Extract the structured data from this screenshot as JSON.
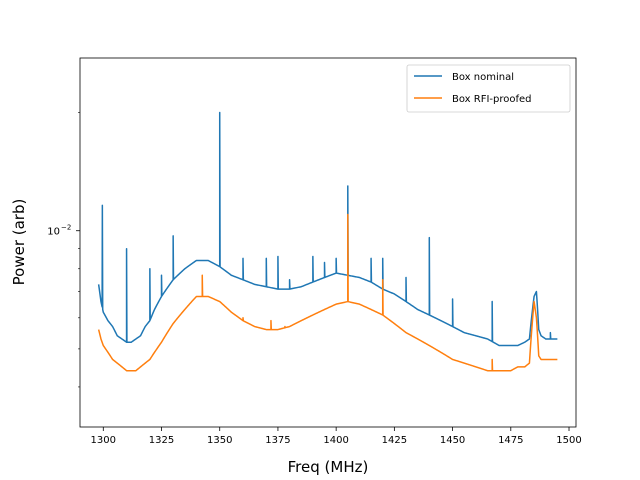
{
  "chart_data": {
    "type": "line",
    "xlabel": "Freq (MHz)",
    "ylabel": "Power (arb)",
    "xlim": [
      1290,
      1503
    ],
    "ylim_log": [
      -2.5,
      -1.56
    ],
    "yscale": "log",
    "x_ticks": [
      1300,
      1325,
      1350,
      1375,
      1400,
      1425,
      1450,
      1475,
      1500
    ],
    "x_tick_labels": [
      "1300",
      "1325",
      "1350",
      "1375",
      "1400",
      "1425",
      "1450",
      "1475",
      "1500"
    ],
    "y_major_ticks": [
      0.01
    ],
    "y_tick_base": "10",
    "y_tick_exp": "−2",
    "legend_position": "top-right",
    "grid": false,
    "series": [
      {
        "name": "Box nominal",
        "color": "#1f77b4",
        "baseline": [
          [
            1298,
            0.0073
          ],
          [
            1299,
            0.0066
          ],
          [
            1300,
            0.0062
          ],
          [
            1302,
            0.0059
          ],
          [
            1304,
            0.0057
          ],
          [
            1306,
            0.0054
          ],
          [
            1308,
            0.0053
          ],
          [
            1310,
            0.0052
          ],
          [
            1312,
            0.0052
          ],
          [
            1314,
            0.0053
          ],
          [
            1316,
            0.0054
          ],
          [
            1318,
            0.0057
          ],
          [
            1320,
            0.0059
          ],
          [
            1322,
            0.0063
          ],
          [
            1325,
            0.0068
          ],
          [
            1330,
            0.0075
          ],
          [
            1335,
            0.008
          ],
          [
            1340,
            0.0084
          ],
          [
            1345,
            0.0084
          ],
          [
            1350,
            0.0081
          ],
          [
            1355,
            0.0077
          ],
          [
            1360,
            0.0075
          ],
          [
            1365,
            0.0073
          ],
          [
            1370,
            0.0072
          ],
          [
            1375,
            0.0071
          ],
          [
            1380,
            0.0071
          ],
          [
            1385,
            0.0072
          ],
          [
            1390,
            0.0074
          ],
          [
            1395,
            0.0076
          ],
          [
            1400,
            0.0078
          ],
          [
            1405,
            0.0077
          ],
          [
            1410,
            0.0076
          ],
          [
            1415,
            0.0074
          ],
          [
            1420,
            0.0071
          ],
          [
            1425,
            0.0069
          ],
          [
            1430,
            0.0066
          ],
          [
            1435,
            0.0063
          ],
          [
            1440,
            0.0061
          ],
          [
            1445,
            0.0059
          ],
          [
            1450,
            0.0057
          ],
          [
            1455,
            0.0055
          ],
          [
            1460,
            0.0054
          ],
          [
            1465,
            0.0053
          ],
          [
            1470,
            0.0051
          ],
          [
            1475,
            0.0051
          ],
          [
            1478,
            0.0051
          ],
          [
            1481,
            0.0052
          ],
          [
            1483,
            0.0053
          ],
          [
            1485,
            0.0068
          ],
          [
            1486,
            0.007
          ],
          [
            1487,
            0.0056
          ],
          [
            1488,
            0.0054
          ],
          [
            1490,
            0.0053
          ],
          [
            1493,
            0.0053
          ],
          [
            1495,
            0.0053
          ]
        ],
        "spikes": [
          [
            1299.6,
            0.0116
          ],
          [
            1310,
            0.009
          ],
          [
            1320,
            0.008
          ],
          [
            1325,
            0.0077
          ],
          [
            1330,
            0.0097
          ],
          [
            1350,
            0.02
          ],
          [
            1360,
            0.0085
          ],
          [
            1370,
            0.0085
          ],
          [
            1375,
            0.0086
          ],
          [
            1380,
            0.0075
          ],
          [
            1390,
            0.0086
          ],
          [
            1395,
            0.0083
          ],
          [
            1400,
            0.0085
          ],
          [
            1405,
            0.013
          ],
          [
            1415,
            0.0085
          ],
          [
            1420,
            0.0085
          ],
          [
            1430,
            0.0076
          ],
          [
            1440,
            0.0096
          ],
          [
            1450,
            0.0067
          ],
          [
            1467,
            0.0066
          ],
          [
            1492,
            0.0055
          ]
        ]
      },
      {
        "name": "Box RFI-proofed",
        "color": "#ff7f0e",
        "baseline": [
          [
            1298,
            0.0056
          ],
          [
            1299,
            0.0053
          ],
          [
            1300,
            0.0051
          ],
          [
            1302,
            0.0049
          ],
          [
            1304,
            0.0047
          ],
          [
            1306,
            0.0046
          ],
          [
            1308,
            0.0045
          ],
          [
            1310,
            0.0044
          ],
          [
            1312,
            0.0044
          ],
          [
            1314,
            0.0044
          ],
          [
            1316,
            0.0045
          ],
          [
            1318,
            0.0046
          ],
          [
            1320,
            0.0047
          ],
          [
            1322,
            0.0049
          ],
          [
            1325,
            0.0052
          ],
          [
            1330,
            0.0058
          ],
          [
            1335,
            0.0063
          ],
          [
            1340,
            0.0068
          ],
          [
            1345,
            0.0068
          ],
          [
            1350,
            0.0066
          ],
          [
            1355,
            0.0062
          ],
          [
            1360,
            0.0059
          ],
          [
            1365,
            0.0057
          ],
          [
            1370,
            0.0056
          ],
          [
            1375,
            0.0056
          ],
          [
            1380,
            0.0057
          ],
          [
            1385,
            0.0059
          ],
          [
            1390,
            0.0061
          ],
          [
            1395,
            0.0063
          ],
          [
            1400,
            0.0065
          ],
          [
            1405,
            0.0066
          ],
          [
            1410,
            0.0065
          ],
          [
            1415,
            0.0063
          ],
          [
            1420,
            0.0061
          ],
          [
            1425,
            0.0058
          ],
          [
            1430,
            0.0055
          ],
          [
            1435,
            0.0053
          ],
          [
            1440,
            0.0051
          ],
          [
            1445,
            0.0049
          ],
          [
            1450,
            0.0047
          ],
          [
            1455,
            0.0046
          ],
          [
            1460,
            0.0045
          ],
          [
            1465,
            0.0044
          ],
          [
            1470,
            0.0044
          ],
          [
            1475,
            0.0044
          ],
          [
            1478,
            0.0045
          ],
          [
            1481,
            0.0045
          ],
          [
            1483,
            0.0046
          ],
          [
            1485,
            0.0066
          ],
          [
            1486,
            0.006
          ],
          [
            1487,
            0.0048
          ],
          [
            1488,
            0.0047
          ],
          [
            1490,
            0.0047
          ],
          [
            1493,
            0.0047
          ],
          [
            1495,
            0.0047
          ]
        ],
        "spikes": [
          [
            1342.5,
            0.0077
          ],
          [
            1360,
            0.006
          ],
          [
            1372,
            0.0059
          ],
          [
            1378,
            0.0057
          ],
          [
            1380,
            0.0057
          ],
          [
            1405,
            0.011
          ],
          [
            1420,
            0.0075
          ],
          [
            1467,
            0.0047
          ]
        ]
      }
    ]
  }
}
